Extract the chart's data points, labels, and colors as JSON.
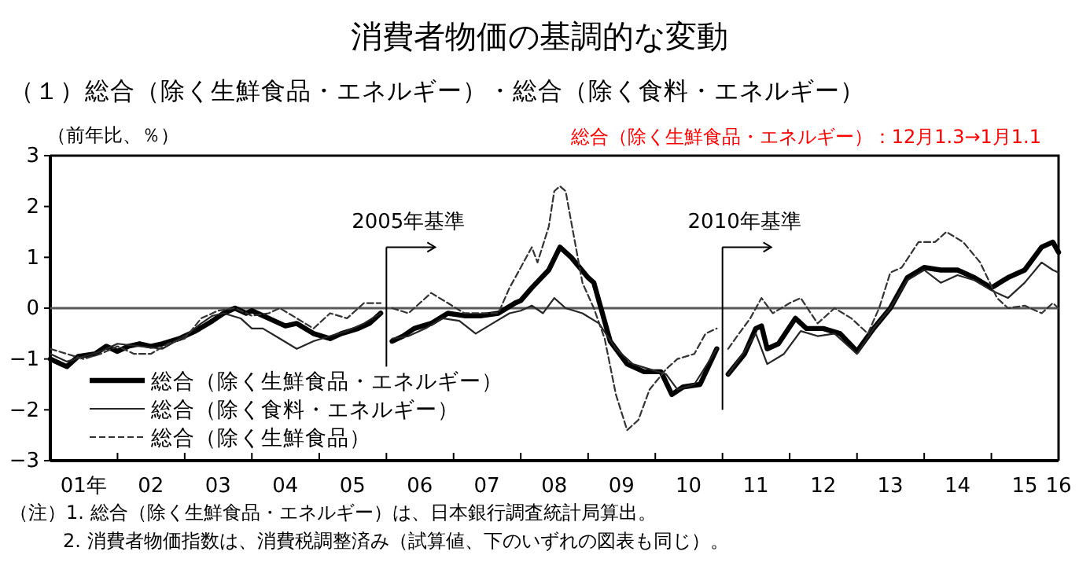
{
  "chart_data": {
    "type": "line",
    "title": "消費者物価の基調的な変動",
    "subtitle": "（１）総合（除く生鮮食品・エネルギー）・総合（除く食料・エネルギー）",
    "ylabel": "（前年比、％）",
    "annotations": [
      "総合（除く生鮮食品・エネルギー）：12月1.3→1月1.1",
      "（注）1.  総合（除く生鮮食品・エネルギー）は、日本銀行調査統計局算出。",
      "2.  消費者物価指数は、消費税調整済み（試算値、下のいずれの図表も同じ）。"
    ],
    "xlim": [
      "2001-01",
      "2016-01"
    ],
    "xticks": [
      {
        "value": "2001-07",
        "label": "01年"
      },
      {
        "value": "2002-07",
        "label": "02"
      },
      {
        "value": "2003-07",
        "label": "03"
      },
      {
        "value": "2004-07",
        "label": "04"
      },
      {
        "value": "2005-07",
        "label": "05"
      },
      {
        "value": "2006-07",
        "label": "06"
      },
      {
        "value": "2007-07",
        "label": "07"
      },
      {
        "value": "2008-07",
        "label": "08"
      },
      {
        "value": "2009-07",
        "label": "09"
      },
      {
        "value": "2010-07",
        "label": "10"
      },
      {
        "value": "2011-07",
        "label": "11"
      },
      {
        "value": "2012-07",
        "label": "12"
      },
      {
        "value": "2013-07",
        "label": "13"
      },
      {
        "value": "2014-07",
        "label": "14"
      },
      {
        "value": "2015-07",
        "label": "15"
      },
      {
        "value": "2016-01",
        "label": "16"
      },
      {
        "value": "2002-01",
        "label": null
      },
      {
        "value": "2003-01",
        "label": null
      },
      {
        "value": "2004-01",
        "label": null
      },
      {
        "value": "2005-01",
        "label": null
      },
      {
        "value": "2006-01",
        "label": null
      },
      {
        "value": "2007-01",
        "label": null
      },
      {
        "value": "2008-01",
        "label": null
      },
      {
        "value": "2009-01",
        "label": null
      },
      {
        "value": "2010-01",
        "label": null
      },
      {
        "value": "2011-01",
        "label": null
      },
      {
        "value": "2012-01",
        "label": null
      },
      {
        "value": "2013-01",
        "label": null
      },
      {
        "value": "2014-01",
        "label": null
      },
      {
        "value": "2015-01",
        "label": null
      }
    ],
    "ylim": [
      -3,
      3
    ],
    "yticks": [
      -3,
      -2,
      -1,
      0,
      1,
      2,
      3
    ],
    "grid": false,
    "legend": "bottom left",
    "ref_lines": [
      {
        "axis": "y",
        "value": 0,
        "color": "#595959"
      },
      {
        "axis": "x",
        "value": "2006-01",
        "label": "2005年基準",
        "color": "#000000"
      },
      {
        "axis": "x",
        "value": "2011-01",
        "label": "2010年基準",
        "color": "#000000"
      }
    ],
    "series": [
      {
        "name": "総合（除く生鮮食品・エネルギー）",
        "color": "#000000",
        "line_style": "solid",
        "x": [
          "2001-01",
          "2001-03",
          "2001-04",
          "2001-06",
          "2001-09",
          "2001-11",
          "2002-01",
          "2002-03",
          "2002-05",
          "2002-07",
          "2002-09",
          "2002-12",
          "2003-03",
          "2003-06",
          "2003-08",
          "2003-10",
          "2003-12",
          "2004-01",
          "2004-04",
          "2004-07",
          "2004-09",
          "2004-12",
          "2005-03",
          "2005-05",
          "2005-08",
          "2005-10",
          "2005-12",
          "2006-01",
          "2006-02",
          "2006-04",
          "2006-06",
          "2006-09",
          "2006-12",
          "2007-03",
          "2007-06",
          "2007-09",
          "2007-12",
          "2008-01",
          "2008-03",
          "2008-06",
          "2008-08",
          "2008-10",
          "2009-01",
          "2009-02",
          "2009-05",
          "2009-08",
          "2009-11",
          "2010-02",
          "2010-04",
          "2010-06",
          "2010-09",
          "2010-12",
          "2011-01",
          "2011-02",
          "2011-05",
          "2011-07",
          "2011-08",
          "2011-09",
          "2011-11",
          "2012-02",
          "2012-04",
          "2012-07",
          "2012-10",
          "2013-01",
          "2013-04",
          "2013-07",
          "2013-10",
          "2014-01",
          "2014-04",
          "2014-07",
          "2014-10",
          "2015-01",
          "2015-04",
          "2015-07",
          "2015-10",
          "2015-12",
          "2016-01"
        ],
        "values": [
          -1.0,
          -1.1,
          -1.15,
          -0.95,
          -0.9,
          -0.75,
          -0.85,
          -0.75,
          -0.7,
          -0.75,
          -0.7,
          -0.6,
          -0.45,
          -0.25,
          -0.1,
          0.0,
          -0.1,
          -0.05,
          -0.2,
          -0.35,
          -0.3,
          -0.5,
          -0.6,
          -0.5,
          -0.4,
          -0.3,
          -0.1,
          null,
          -0.65,
          -0.55,
          -0.4,
          -0.3,
          -0.1,
          -0.15,
          -0.15,
          -0.1,
          0.1,
          0.15,
          0.4,
          0.75,
          1.2,
          1.0,
          0.6,
          0.5,
          -0.65,
          -1.1,
          -1.25,
          -1.25,
          -1.7,
          -1.55,
          -1.5,
          -0.8,
          null,
          -1.3,
          -0.9,
          -0.4,
          -0.35,
          -0.8,
          -0.7,
          -0.2,
          -0.4,
          -0.4,
          -0.5,
          -0.85,
          -0.4,
          0.0,
          0.6,
          0.8,
          0.75,
          0.75,
          0.6,
          0.4,
          0.6,
          0.75,
          1.2,
          1.3,
          1.1
        ]
      },
      {
        "name": "総合（除く食料・エネルギー）",
        "color": "#262626",
        "line_style": "solid",
        "x": [
          "2001-01",
          "2001-04",
          "2001-07",
          "2001-10",
          "2002-01",
          "2002-05",
          "2002-09",
          "2003-01",
          "2003-04",
          "2003-06",
          "2003-08",
          "2003-11",
          "2004-01",
          "2004-03",
          "2004-06",
          "2004-09",
          "2004-12",
          "2005-03",
          "2005-06",
          "2005-09",
          "2005-12",
          "2006-01",
          "2006-02",
          "2006-05",
          "2006-08",
          "2006-11",
          "2007-02",
          "2007-05",
          "2007-08",
          "2007-11",
          "2008-01",
          "2008-03",
          "2008-05",
          "2008-07",
          "2008-09",
          "2008-12",
          "2009-03",
          "2009-06",
          "2009-09",
          "2009-12",
          "2010-03",
          "2010-05",
          "2010-08",
          "2010-12",
          "2011-01",
          "2011-02",
          "2011-05",
          "2011-07",
          "2011-09",
          "2011-12",
          "2012-03",
          "2012-06",
          "2012-09",
          "2013-01",
          "2013-04",
          "2013-07",
          "2013-10",
          "2014-01",
          "2014-04",
          "2014-07",
          "2014-10",
          "2015-01",
          "2015-04",
          "2015-07",
          "2015-10",
          "2015-12",
          "2016-01"
        ],
        "values": [
          -0.9,
          -1.05,
          -0.95,
          -0.85,
          -0.7,
          -0.75,
          -0.8,
          -0.55,
          -0.3,
          -0.15,
          -0.1,
          -0.2,
          -0.4,
          -0.4,
          -0.6,
          -0.8,
          -0.65,
          -0.55,
          -0.45,
          -0.3,
          -0.1,
          null,
          -0.6,
          -0.55,
          -0.4,
          -0.2,
          -0.25,
          -0.5,
          -0.3,
          -0.1,
          -0.05,
          0.05,
          -0.1,
          0.2,
          0.0,
          -0.1,
          -0.3,
          -0.8,
          -1.1,
          -1.2,
          -1.3,
          -1.6,
          -1.5,
          -0.8,
          null,
          -1.3,
          -0.85,
          -0.5,
          -1.1,
          -0.9,
          -0.45,
          -0.55,
          -0.5,
          -0.9,
          -0.4,
          0.0,
          0.55,
          0.75,
          0.5,
          0.65,
          0.55,
          0.35,
          0.2,
          0.5,
          0.9,
          0.75,
          0.7
        ]
      },
      {
        "name": "総合（除く生鮮食品）",
        "color": "#333333",
        "line_style": "dashed",
        "x": [
          "2001-01",
          "2001-04",
          "2001-07",
          "2001-10",
          "2002-01",
          "2002-04",
          "2002-07",
          "2002-10",
          "2003-01",
          "2003-04",
          "2003-07",
          "2003-10",
          "2004-01",
          "2004-04",
          "2004-06",
          "2004-09",
          "2004-12",
          "2005-03",
          "2005-06",
          "2005-09",
          "2005-12",
          "2006-01",
          "2006-02",
          "2006-05",
          "2006-09",
          "2006-12",
          "2007-03",
          "2007-06",
          "2007-09",
          "2007-11",
          "2008-01",
          "2008-03",
          "2008-04",
          "2008-06",
          "2008-07",
          "2008-08",
          "2008-09",
          "2008-10",
          "2008-12",
          "2009-02",
          "2009-04",
          "2009-06",
          "2009-08",
          "2009-10",
          "2009-12",
          "2010-03",
          "2010-05",
          "2010-08",
          "2010-10",
          "2010-12",
          "2011-01",
          "2011-02",
          "2011-04",
          "2011-06",
          "2011-08",
          "2011-10",
          "2012-01",
          "2012-03",
          "2012-06",
          "2012-09",
          "2012-12",
          "2013-03",
          "2013-05",
          "2013-07",
          "2013-09",
          "2013-12",
          "2014-03",
          "2014-05",
          "2014-08",
          "2014-11",
          "2015-02",
          "2015-04",
          "2015-07",
          "2015-10",
          "2015-12",
          "2016-01"
        ],
        "values": [
          -0.8,
          -0.9,
          -1.0,
          -0.9,
          -0.75,
          -0.9,
          -0.9,
          -0.7,
          -0.6,
          -0.2,
          -0.05,
          0.0,
          -0.15,
          -0.1,
          0.0,
          -0.2,
          -0.4,
          -0.1,
          -0.2,
          0.1,
          0.1,
          null,
          0.0,
          -0.1,
          0.3,
          0.1,
          -0.1,
          -0.1,
          -0.1,
          0.4,
          0.8,
          1.2,
          0.9,
          1.6,
          2.3,
          2.4,
          2.3,
          1.7,
          0.5,
          0.0,
          -0.6,
          -1.7,
          -2.4,
          -2.2,
          -1.6,
          -1.2,
          -1.0,
          -0.9,
          -0.5,
          -0.4,
          null,
          -0.8,
          -0.5,
          -0.2,
          0.2,
          -0.1,
          0.1,
          0.2,
          -0.3,
          0.0,
          -0.2,
          -0.5,
          0.0,
          0.7,
          0.8,
          1.3,
          1.3,
          1.5,
          1.3,
          0.9,
          0.2,
          0.0,
          0.05,
          -0.1,
          0.1,
          0.0
        ]
      }
    ]
  }
}
